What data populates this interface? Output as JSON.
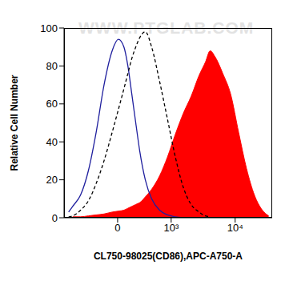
{
  "chart_data": {
    "type": "histogram_overlay",
    "xlabel": "CL750-98025(CD86),APC-A750-A",
    "ylabel": "Relative Cell Number",
    "watermark": "WWW.PTGLAB.COM",
    "log": "x",
    "xlim": [
      -1000,
      35000
    ],
    "xticks": [
      {
        "value": 0,
        "label": "0"
      },
      {
        "value": 1000,
        "label": "10³"
      },
      {
        "value": 10000,
        "label": "10⁴"
      }
    ],
    "ylim": [
      0,
      100
    ],
    "yticks": [
      0,
      20,
      40,
      60,
      80,
      100
    ],
    "grid": false,
    "x": [
      -830,
      -700,
      -490,
      -330,
      -210,
      -115,
      -40,
      5,
      47,
      82,
      122,
      167,
      220,
      305,
      424,
      613,
      860,
      1180,
      1600,
      2140,
      2850,
      3570,
      4220,
      4980,
      6550,
      8590,
      11250,
      14700,
      19200,
      25100,
      31100
    ],
    "series": [
      {
        "type": "line",
        "line_style": "solid",
        "color": "#1f1f9e",
        "values": [
          3,
          6,
          12,
          25,
          45,
          70,
          88,
          94,
          90,
          80,
          65,
          50,
          35,
          20,
          10,
          4,
          1.5,
          0.5,
          0,
          null,
          null,
          null,
          null,
          null,
          null,
          null,
          null,
          null,
          null,
          null,
          null
        ]
      },
      {
        "type": "line",
        "line_style": "dashed",
        "color": "#000000",
        "values": [
          0.5,
          1,
          4,
          9,
          18,
          30,
          45,
          57,
          68,
          76,
          84,
          90,
          95,
          98,
          90,
          72,
          52,
          32,
          16,
          7,
          3,
          1,
          0.5,
          null,
          null,
          null,
          null,
          null,
          null,
          null,
          null
        ]
      },
      {
        "type": "area",
        "line_style": "solid",
        "color": "#ff0000",
        "values": [
          null,
          0.5,
          0.5,
          1,
          1.5,
          2,
          3,
          3.5,
          4,
          5,
          6,
          7,
          8,
          11,
          15,
          22,
          32,
          44,
          55,
          64,
          75,
          82,
          88,
          85,
          76,
          65,
          45,
          26,
          12,
          4,
          1
        ]
      }
    ]
  }
}
